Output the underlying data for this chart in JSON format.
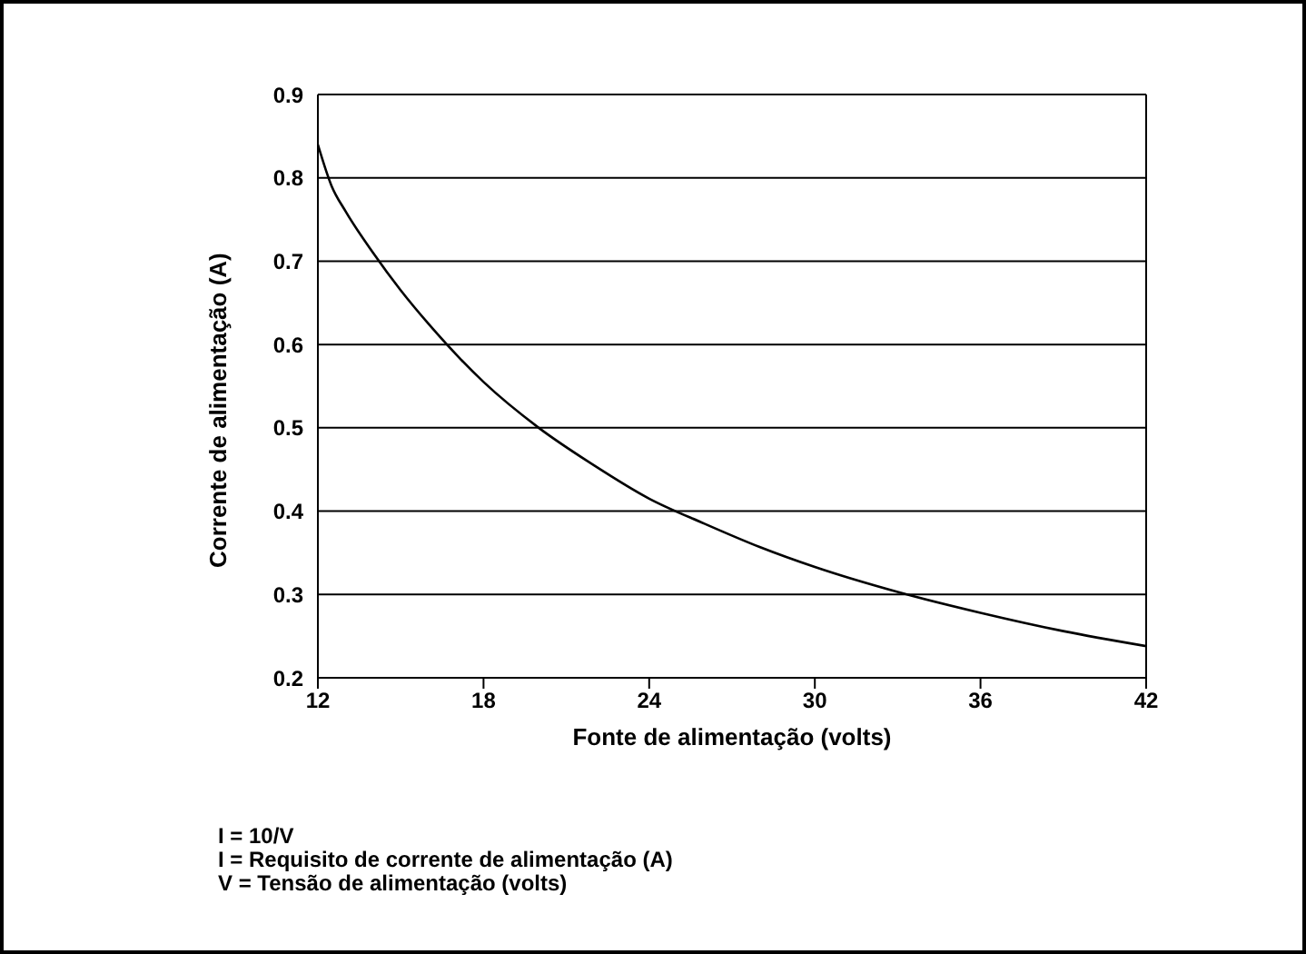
{
  "chart_data": {
    "type": "line",
    "xlabel": "Fonte de alimentação (volts)",
    "ylabel": "Corrente de alimentação (A)",
    "x": [
      12,
      12.5,
      13,
      14,
      15,
      16,
      18,
      20,
      22,
      24,
      26,
      28,
      30,
      33,
      36,
      39,
      42
    ],
    "series": [
      {
        "color": "#000000",
        "values": [
          0.84,
          0.79,
          0.76,
          0.71,
          0.665,
          0.625,
          0.555,
          0.5,
          0.455,
          0.415,
          0.385,
          0.357,
          0.333,
          0.303,
          0.278,
          0.256,
          0.238
        ]
      }
    ],
    "xlim": [
      12,
      42
    ],
    "xticks": [
      12,
      18,
      24,
      30,
      36,
      42
    ],
    "ylim": [
      0.2,
      0.9
    ],
    "yticks": [
      0.2,
      0.3,
      0.4,
      0.5,
      0.6,
      0.7,
      0.8,
      0.9
    ],
    "grid": "y",
    "legend": false,
    "marker": "none",
    "line_style": "solid",
    "annotations": [
      "I = 10/V",
      "I = Requisito de corrente de alimentação (A)",
      "V = Tensão de alimentação (volts)"
    ]
  }
}
